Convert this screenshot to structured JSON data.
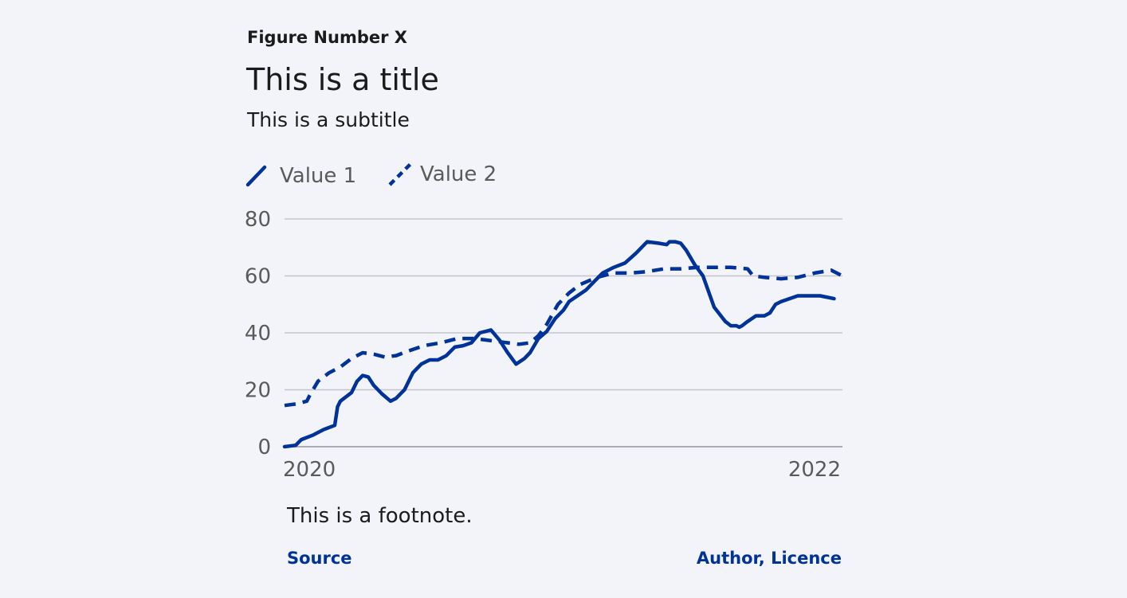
{
  "figure_number": "Figure Number X",
  "title": "This is a title",
  "subtitle": "This is a subtitle",
  "footnote": "This is a footnote.",
  "source_label": "Source",
  "author_label": "Author, Licence",
  "colors": {
    "line": "#003399",
    "grid": "#c4c6cc",
    "axis_text": "#5a5a5a",
    "background": "#f3f4f9"
  },
  "chart_data": {
    "type": "line",
    "x_tick_labels": [
      "2020",
      "2022"
    ],
    "ylim": [
      0,
      80
    ],
    "y_ticks": [
      0,
      20,
      40,
      60,
      80
    ],
    "grid": "horizontal",
    "legend_position": "top-left",
    "series": [
      {
        "name": "Value 1",
        "style": "solid",
        "x": [
          0,
          0.02,
          0.03,
          0.05,
          0.07,
          0.09,
          0.095,
          0.1,
          0.12,
          0.13,
          0.14,
          0.15,
          0.16,
          0.175,
          0.19,
          0.2,
          0.215,
          0.23,
          0.245,
          0.26,
          0.275,
          0.29,
          0.305,
          0.32,
          0.335,
          0.35,
          0.37,
          0.385,
          0.4,
          0.415,
          0.43,
          0.44,
          0.455,
          0.47,
          0.485,
          0.5,
          0.51,
          0.525,
          0.54,
          0.555,
          0.57,
          0.59,
          0.61,
          0.63,
          0.65,
          0.67,
          0.685,
          0.69,
          0.7,
          0.71,
          0.72,
          0.735,
          0.75,
          0.77,
          0.79,
          0.8,
          0.81,
          0.815,
          0.82,
          0.83,
          0.845,
          0.86,
          0.87,
          0.88,
          0.89,
          0.905,
          0.92,
          0.94,
          0.96,
          0.985
        ],
        "values": [
          0,
          0.5,
          2.5,
          4,
          6,
          7.5,
          14,
          16,
          19,
          23,
          25,
          24.5,
          21.5,
          18.5,
          16,
          17,
          20,
          26,
          29,
          30.5,
          30.5,
          32,
          35,
          35.5,
          36.5,
          40,
          41,
          37.5,
          33,
          29,
          31,
          33,
          38,
          40.5,
          45,
          48,
          51,
          53,
          55,
          58,
          61,
          63,
          64.5,
          68,
          72,
          71.5,
          71,
          72,
          72,
          71.5,
          69,
          64,
          60,
          49,
          44,
          42.5,
          42.5,
          42,
          42.5,
          44,
          46,
          46,
          47,
          50,
          51,
          52,
          53,
          53,
          53,
          52
        ]
      },
      {
        "name": "Value 2",
        "style": "dashed",
        "x": [
          0,
          0.02,
          0.04,
          0.045,
          0.06,
          0.08,
          0.1,
          0.12,
          0.14,
          0.16,
          0.18,
          0.2,
          0.22,
          0.25,
          0.28,
          0.31,
          0.34,
          0.36,
          0.38,
          0.4,
          0.42,
          0.44,
          0.455,
          0.47,
          0.49,
          0.51,
          0.53,
          0.56,
          0.59,
          0.62,
          0.65,
          0.68,
          0.71,
          0.74,
          0.77,
          0.8,
          0.83,
          0.84,
          0.86,
          0.89,
          0.92,
          0.95,
          0.98,
          1.0
        ],
        "values": [
          14.5,
          15,
          16,
          18,
          23,
          26,
          28,
          31,
          33,
          32.5,
          31.5,
          32,
          33.5,
          35.5,
          36.5,
          38,
          38,
          37.5,
          37,
          36.5,
          36,
          36.5,
          39,
          43,
          50,
          54,
          57,
          59.5,
          61,
          61,
          61.5,
          62.5,
          62.5,
          63,
          63,
          63,
          62.5,
          60,
          59.5,
          59,
          59.5,
          61,
          62,
          60
        ]
      }
    ]
  }
}
